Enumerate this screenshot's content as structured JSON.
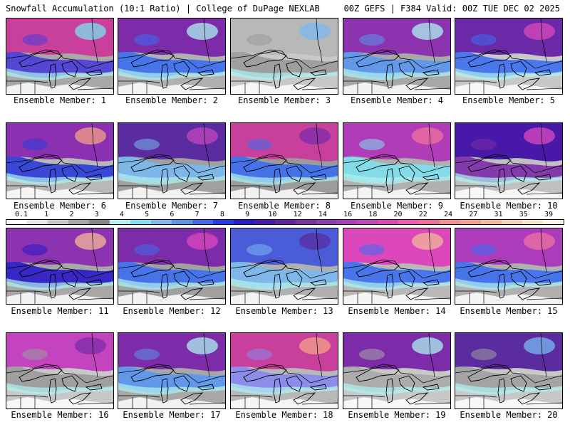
{
  "header": {
    "left": "Snowfall Accumulation (10:1 Ratio) | College of DuPage NEXLAB",
    "right": "00Z GEFS | F384 Valid: 00Z TUE DEC 02 2025"
  },
  "colorbar": {
    "labels": [
      "0.1",
      "1",
      "2",
      "3",
      "4",
      "5",
      "6",
      "7",
      "8",
      "9",
      "10",
      "12",
      "14",
      "16",
      "18",
      "20",
      "22",
      "24",
      "27",
      "31",
      "35",
      "39"
    ],
    "colors": [
      "#ffffff",
      "#e4e4e4",
      "#c8c8c8",
      "#a8a8a8",
      "#888888",
      "#aef2f2",
      "#7ee0ee",
      "#7ab8f0",
      "#5a96ee",
      "#3c6ef0",
      "#1e3ce8",
      "#2a18c8",
      "#4818a8",
      "#64209e",
      "#7c2ca8",
      "#9438b4",
      "#ac3cbc",
      "#c444c0",
      "#dc48bc",
      "#ec5cb0",
      "#f070a0",
      "#f48c90",
      "#f4a088",
      "#f4b898",
      "#f4d0b0",
      "#f8e4c8",
      "#fcf4e4"
    ]
  },
  "members": [
    {
      "label": "Ensemble Member: 1",
      "upper": "#c8409c",
      "mid": "#4a3cd8",
      "south": "#a8a8a8",
      "accent": "#7ee0ee"
    },
    {
      "label": "Ensemble Member: 2",
      "upper": "#7c2ca8",
      "mid": "#3c6ef0",
      "south": "#b0b0b0",
      "accent": "#aef2f2"
    },
    {
      "label": "Ensemble Member: 3",
      "upper": "#b8b8b8",
      "mid": "#9a9a9a",
      "south": "#c8c8c8",
      "accent": "#7ab8f0"
    },
    {
      "label": "Ensemble Member: 4",
      "upper": "#8c34b0",
      "mid": "#5a96ee",
      "south": "#a8a8a8",
      "accent": "#aef2f2"
    },
    {
      "label": "Ensemble Member: 5",
      "upper": "#6a2aa8",
      "mid": "#3c6ef0",
      "south": "#c8c8c8",
      "accent": "#dc48bc"
    },
    {
      "label": "Ensemble Member: 6",
      "upper": "#8a30b0",
      "mid": "#2a3cd8",
      "south": "#b8b8b8",
      "accent": "#f4a088"
    },
    {
      "label": "Ensemble Member: 7",
      "upper": "#5a2ca0",
      "mid": "#7ab8f0",
      "south": "#a0a0a0",
      "accent": "#c444c0"
    },
    {
      "label": "Ensemble Member: 8",
      "upper": "#c8409c",
      "mid": "#3c6ef0",
      "south": "#9c9c9c",
      "accent": "#7c2ca8"
    },
    {
      "label": "Ensemble Member: 9",
      "upper": "#b03cb8",
      "mid": "#7ee0ee",
      "south": "#b0b0b0",
      "accent": "#f070a0"
    },
    {
      "label": "Ensemble Member: 10",
      "upper": "#4818a8",
      "mid": "#7c2ca8",
      "south": "#c0c0c0",
      "accent": "#dc48bc"
    },
    {
      "label": "Ensemble Member: 11",
      "upper": "#8c34b0",
      "mid": "#2a18c8",
      "south": "#a8a8a8",
      "accent": "#f4b898"
    },
    {
      "label": "Ensemble Member: 12",
      "upper": "#7c2ca8",
      "mid": "#3c6ef0",
      "south": "#a0a0a0",
      "accent": "#dc48bc"
    },
    {
      "label": "Ensemble Member: 13",
      "upper": "#4a5cd8",
      "mid": "#7ab8f0",
      "south": "#b0b0b0",
      "accent": "#5a2ca0"
    },
    {
      "label": "Ensemble Member: 14",
      "upper": "#dc48bc",
      "mid": "#3c6ef0",
      "south": "#b8b8b8",
      "accent": "#f4b898"
    },
    {
      "label": "Ensemble Member: 15",
      "upper": "#ac3cbc",
      "mid": "#3c6ef0",
      "south": "#b0b0b0",
      "accent": "#f070a0"
    },
    {
      "label": "Ensemble Member: 16",
      "upper": "#c444c0",
      "mid": "#9a9a9a",
      "south": "#c8c8c8",
      "accent": "#7c2ca8"
    },
    {
      "label": "Ensemble Member: 17",
      "upper": "#7c2ca8",
      "mid": "#5a96ee",
      "south": "#a8a8a8",
      "accent": "#aef2f2"
    },
    {
      "label": "Ensemble Member: 18",
      "upper": "#c8409c",
      "mid": "#8888ee",
      "south": "#b8b8b8",
      "accent": "#f4a088"
    },
    {
      "label": "Ensemble Member: 19",
      "upper": "#7c2ca8",
      "mid": "#a8a8a8",
      "south": "#c8c8c8",
      "accent": "#aef2f2"
    },
    {
      "label": "Ensemble Member: 20",
      "upper": "#5a2ca0",
      "mid": "#a0a0a0",
      "south": "#c8c8c8",
      "accent": "#7ab8f0"
    }
  ]
}
